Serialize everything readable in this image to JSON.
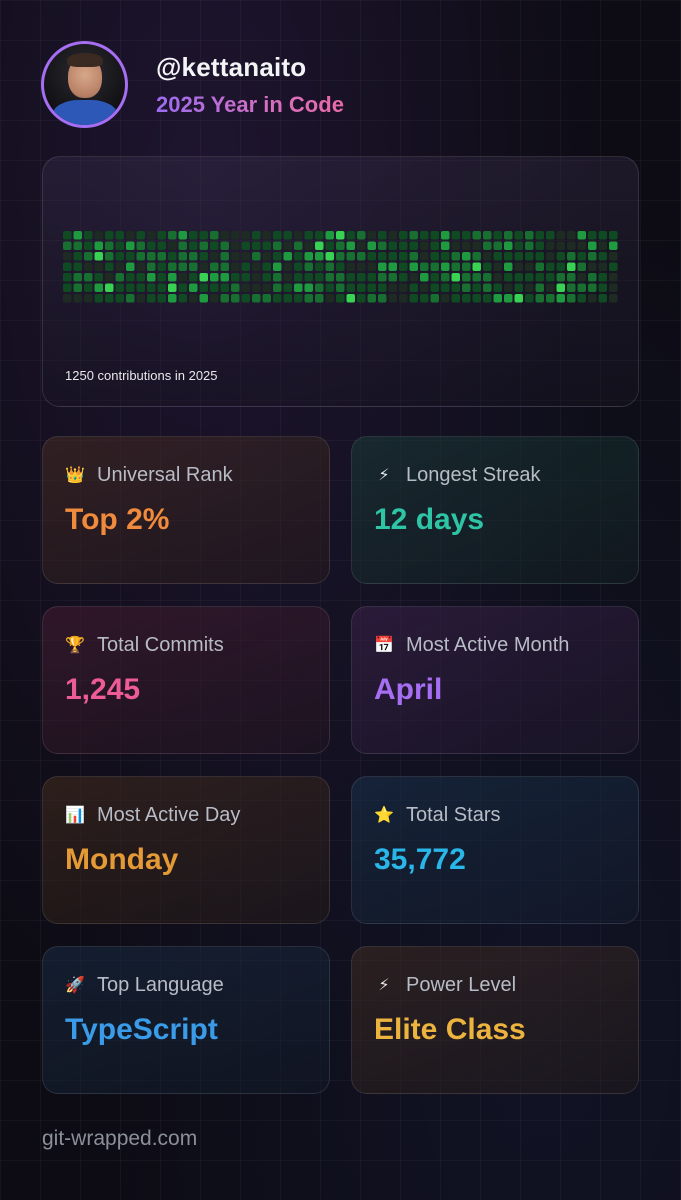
{
  "header": {
    "username": "@kettanaito",
    "subtitle": "2025 Year in Code"
  },
  "contributions": {
    "caption": "1250 contributions in 2025",
    "total": 1250
  },
  "stats": [
    {
      "icon": "crown-icon",
      "label": "Universal Rank",
      "value": "Top 2%",
      "color": "#f08a3c"
    },
    {
      "icon": "lightning-icon",
      "label": "Longest Streak",
      "value": "12 days",
      "color": "#2ec4a6"
    },
    {
      "icon": "trophy-icon",
      "label": "Total Commits",
      "value": "1,245",
      "color": "#ee5c95"
    },
    {
      "icon": "calendar-icon",
      "label": "Most Active Month",
      "value": "April",
      "color": "#a66ef2"
    },
    {
      "icon": "bar-chart-icon",
      "label": "Most Active Day",
      "value": "Monday",
      "color": "#e49a35"
    },
    {
      "icon": "star-icon",
      "label": "Total Stars",
      "value": "35,772",
      "color": "#29b6e8"
    },
    {
      "icon": "rocket-icon",
      "label": "Top Language",
      "value": "TypeScript",
      "color": "#3a9ce8"
    },
    {
      "icon": "lightning-icon",
      "label": "Power Level",
      "value": "Elite Class",
      "color": "#ecb33f"
    }
  ],
  "footer": {
    "site": "git-wrapped.com"
  }
}
